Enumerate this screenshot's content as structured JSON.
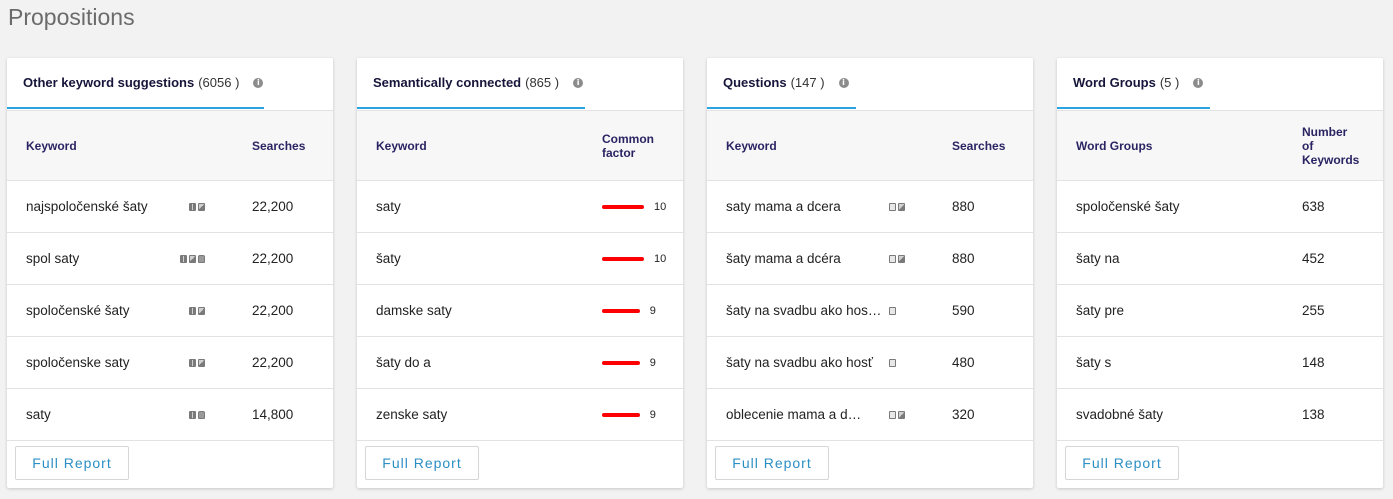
{
  "page_title": "Propositions",
  "button_label": "Full Report",
  "cards": [
    {
      "tab_label": "Other keyword suggestions",
      "tab_count": "(6056 )",
      "col_keyword": "Keyword",
      "col_value": "Searches",
      "rows": [
        {
          "keyword": "najspoločenské šaty",
          "icons": [
            "map-icon",
            "image-icon"
          ],
          "value": "22,200"
        },
        {
          "keyword": "spol saty",
          "icons": [
            "map-icon",
            "image-icon",
            "shopping-icon"
          ],
          "value": "22,200"
        },
        {
          "keyword": "spoločenské šaty",
          "icons": [
            "map-icon",
            "image-icon"
          ],
          "value": "22,200"
        },
        {
          "keyword": "spoločenske saty",
          "icons": [
            "map-icon",
            "image-icon"
          ],
          "value": "22,200"
        },
        {
          "keyword": "saty",
          "icons": [
            "map-icon",
            "shopping-icon"
          ],
          "value": "14,800"
        }
      ]
    },
    {
      "tab_label": "Semantically connected",
      "tab_count": "(865 )",
      "col_keyword": "Keyword",
      "col_value_line1": "Common",
      "col_value_line2": "factor",
      "rows": [
        {
          "keyword": "saty",
          "factor": 10,
          "value": "10"
        },
        {
          "keyword": "šaty",
          "factor": 10,
          "value": "10"
        },
        {
          "keyword": "damske saty",
          "factor": 9,
          "value": "9"
        },
        {
          "keyword": "šaty do a",
          "factor": 9,
          "value": "9"
        },
        {
          "keyword": "zenske saty",
          "factor": 9,
          "value": "9"
        }
      ]
    },
    {
      "tab_label": "Questions",
      "tab_count": "(147 )",
      "col_keyword": "Keyword",
      "col_value": "Searches",
      "rows": [
        {
          "keyword": "saty mama a dcera",
          "icons": [
            "question-icon",
            "image-icon"
          ],
          "value": "880"
        },
        {
          "keyword": "šaty mama a dcéra",
          "icons": [
            "question-icon",
            "image-icon"
          ],
          "value": "880"
        },
        {
          "keyword": "šaty na svadbu ako hos…",
          "icons": [
            "question-icon"
          ],
          "value": "590"
        },
        {
          "keyword": "šaty na svadbu ako hosť",
          "icons": [
            "question-icon"
          ],
          "value": "480"
        },
        {
          "keyword": "oblecenie mama a d…",
          "icons": [
            "question-icon",
            "image-icon"
          ],
          "value": "320"
        }
      ]
    },
    {
      "tab_label": "Word Groups",
      "tab_count": "(5 )",
      "col_keyword": "Word Groups",
      "col_value_line1": "Number",
      "col_value_line2": "of",
      "col_value_line3": "Keywords",
      "rows": [
        {
          "keyword": "spoločenské šaty",
          "value": "638"
        },
        {
          "keyword": "šaty na",
          "value": "452"
        },
        {
          "keyword": "šaty pre",
          "value": "255"
        },
        {
          "keyword": "šaty s",
          "value": "148"
        },
        {
          "keyword": "svadobné šaty",
          "value": "138"
        }
      ]
    }
  ]
}
